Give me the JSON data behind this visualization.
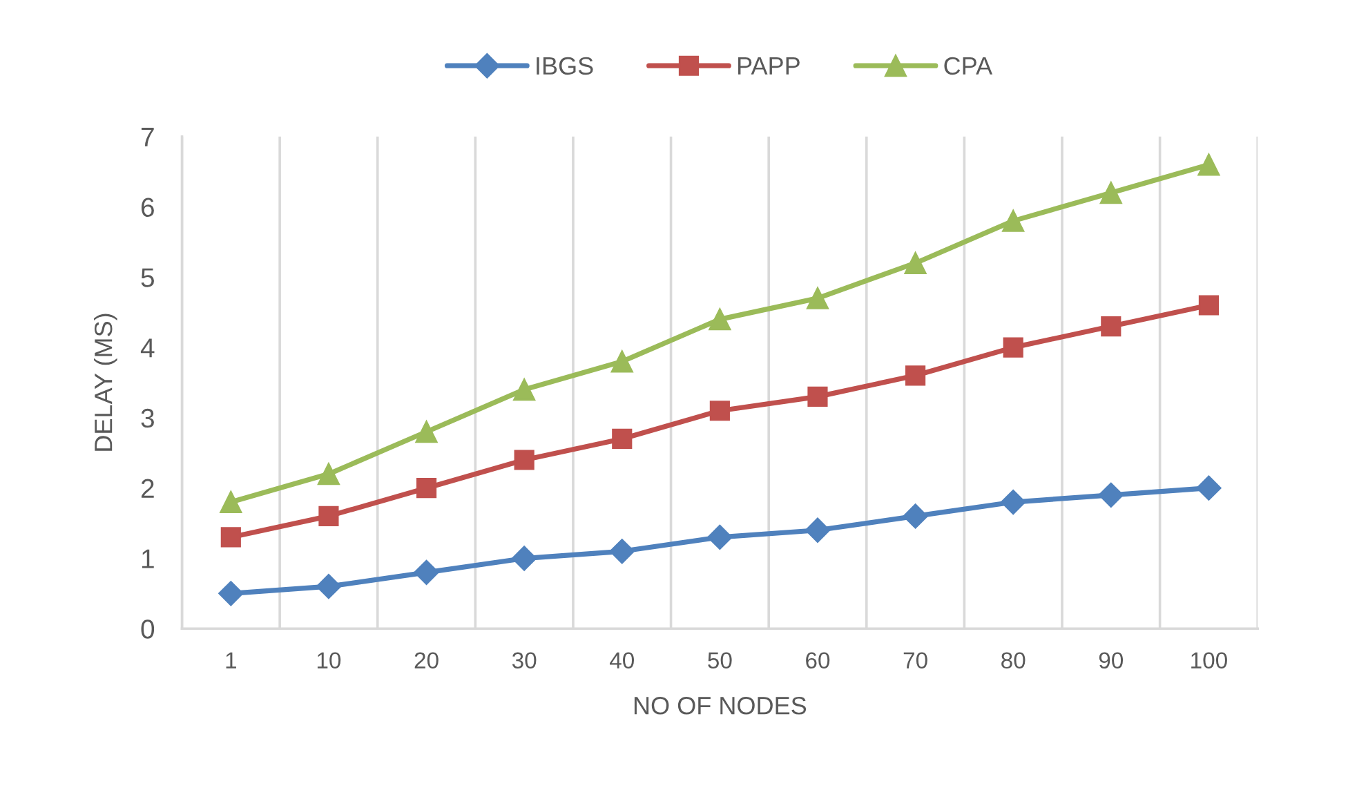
{
  "chart_data": {
    "type": "line",
    "xlabel": "NO OF NODES",
    "ylabel": "DELAY (MS)",
    "categories": [
      "1",
      "10",
      "20",
      "30",
      "40",
      "50",
      "60",
      "70",
      "80",
      "90",
      "100"
    ],
    "series": [
      {
        "name": "IBGS",
        "color": "#4f81bd",
        "marker": "diamond",
        "values": [
          0.5,
          0.6,
          0.8,
          1.0,
          1.1,
          1.3,
          1.4,
          1.6,
          1.8,
          1.9,
          2.0
        ]
      },
      {
        "name": "PAPP",
        "color": "#c0504d",
        "marker": "square",
        "values": [
          1.3,
          1.6,
          2.0,
          2.4,
          2.7,
          3.1,
          3.3,
          3.6,
          4.0,
          4.3,
          4.6
        ]
      },
      {
        "name": "CPA",
        "color": "#9bbb59",
        "marker": "triangle",
        "values": [
          1.8,
          2.2,
          2.8,
          3.4,
          3.8,
          4.4,
          4.7,
          5.2,
          5.8,
          6.2,
          6.6
        ]
      }
    ],
    "ylim": [
      0,
      7
    ],
    "yticks": [
      0,
      1,
      2,
      3,
      4,
      5,
      6,
      7
    ],
    "grid": "x",
    "legend": "top",
    "line_style": "solid"
  }
}
